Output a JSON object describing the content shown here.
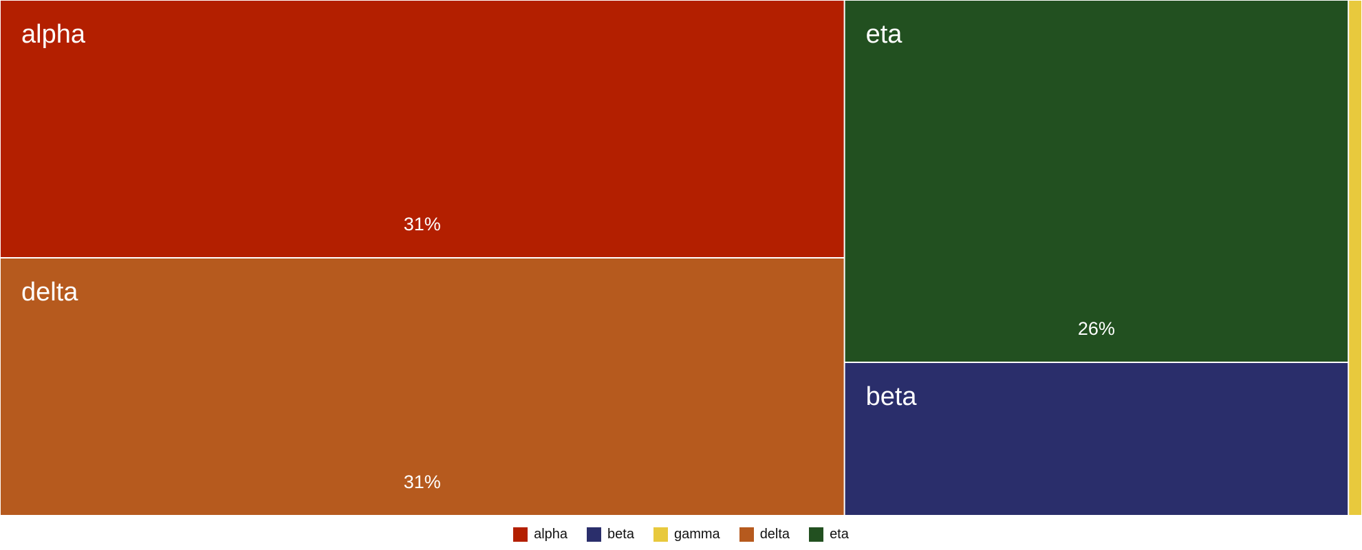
{
  "chart_data": {
    "type": "treemap",
    "title": "",
    "items": [
      {
        "name": "alpha",
        "value": 31,
        "label": "31%",
        "color": "#b31f00"
      },
      {
        "name": "delta",
        "value": 31,
        "label": "31%",
        "color": "#b65a1e"
      },
      {
        "name": "eta",
        "value": 26,
        "label": "26%",
        "color": "#225020"
      },
      {
        "name": "beta",
        "value": 11,
        "label": "",
        "color": "#2a2e6b"
      },
      {
        "name": "gamma",
        "value": 1,
        "label": "",
        "color": "#e8c93d"
      }
    ],
    "legend": {
      "position": "bottom",
      "entries": [
        {
          "name": "alpha",
          "color": "#b31f00"
        },
        {
          "name": "beta",
          "color": "#2a2e6b"
        },
        {
          "name": "gamma",
          "color": "#e8c93d"
        },
        {
          "name": "delta",
          "color": "#b65a1e"
        },
        {
          "name": "eta",
          "color": "#225020"
        }
      ]
    }
  }
}
